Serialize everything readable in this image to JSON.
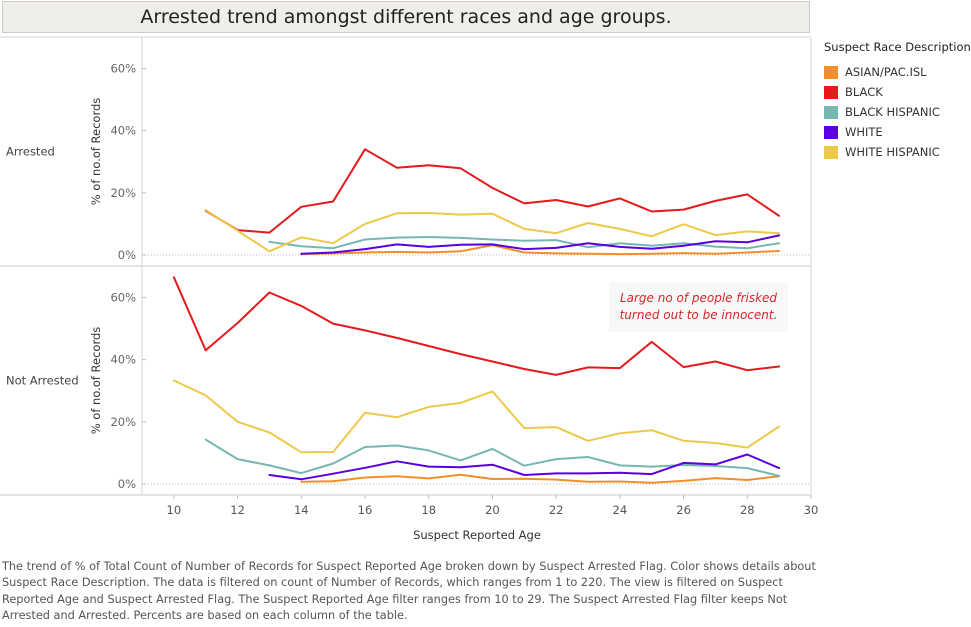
{
  "title": "Arrested trend amongst different races and age groups.",
  "legend": {
    "title": "Suspect Race Description",
    "items": [
      {
        "label": "ASIAN/PAC.ISL",
        "color": "#f28e2b"
      },
      {
        "label": "BLACK",
        "color": "#e41a1c"
      },
      {
        "label": "BLACK HISPANIC",
        "color": "#76b7b2"
      },
      {
        "label": "WHITE",
        "color": "#5a00e0"
      },
      {
        "label": "WHITE HISPANIC",
        "color": "#edc948"
      }
    ]
  },
  "caption": "The trend of % of Total Count of Number of Records for Suspect Reported Age broken down by Suspect Arrested Flag.  Color shows details about Suspect Race Description. The data is filtered on count of Number of Records, which ranges from 1 to 220. The view is filtered on Suspect Reported Age and Suspect Arrested Flag. The Suspect Reported Age filter ranges from 10 to 29. The Suspect Arrested Flag filter keeps Not Arrested and Arrested. Percents are based on each column of the table.",
  "chart_data": {
    "type": "line",
    "xlabel": "Suspect Reported Age",
    "ylabel": "% of no.of Records",
    "xlim": [
      9,
      30
    ],
    "x_ticks": [
      10,
      12,
      14,
      16,
      18,
      20,
      22,
      24,
      26,
      28,
      30
    ],
    "ylim": [
      -2,
      66
    ],
    "y_ticks": [
      0,
      20,
      40,
      60
    ],
    "y_tick_labels": [
      "0%",
      "20%",
      "40%",
      "60%"
    ],
    "annotation": {
      "text_lines": [
        "Large no of people frisked",
        "turned out to be innocent."
      ],
      "color": "#d62728",
      "panel": "Not Arrested"
    },
    "panels": [
      {
        "name": "Arrested",
        "series": [
          {
            "name": "ASIAN/PAC.ISL",
            "color": "#f28e2b",
            "x": [
              14,
              15,
              16,
              17,
              18,
              19,
              20,
              21,
              22,
              23,
              24,
              25,
              26,
              27,
              28,
              29
            ],
            "values": [
              0.3,
              0.5,
              0.8,
              1.0,
              0.8,
              1.2,
              3.2,
              0.8,
              0.5,
              0.4,
              0.3,
              0.4,
              0.6,
              0.4,
              0.8,
              1.3
            ]
          },
          {
            "name": "BLACK",
            "color": "#e41a1c",
            "x": [
              11,
              12,
              13,
              14,
              15,
              16,
              17,
              18,
              19,
              20,
              21,
              22,
              23,
              24,
              25,
              26,
              27,
              28,
              29
            ],
            "values": [
              14.3,
              8.0,
              7.2,
              15.5,
              17.2,
              34.0,
              28.1,
              28.9,
              27.9,
              21.6,
              16.6,
              17.7,
              15.6,
              18.2,
              14.0,
              14.6,
              17.4,
              19.5,
              12.6
            ]
          },
          {
            "name": "BLACK HISPANIC",
            "color": "#76b7b2",
            "x": [
              13,
              14,
              15,
              16,
              17,
              18,
              19,
              20,
              21,
              22,
              23,
              24,
              25,
              26,
              27,
              28,
              29
            ],
            "values": [
              4.2,
              2.8,
              2.2,
              5.0,
              5.6,
              5.8,
              5.5,
              5.0,
              4.6,
              4.8,
              2.5,
              3.8,
              3.0,
              3.8,
              2.7,
              2.2,
              3.8
            ]
          },
          {
            "name": "WHITE",
            "color": "#5a00e0",
            "x": [
              14,
              15,
              16,
              17,
              18,
              19,
              20,
              21,
              22,
              23,
              24,
              25,
              26,
              27,
              28,
              29
            ],
            "values": [
              0.4,
              0.8,
              1.9,
              3.4,
              2.6,
              3.3,
              3.4,
              1.9,
              2.3,
              3.8,
              2.6,
              2.0,
              3.0,
              4.4,
              4.1,
              6.3
            ]
          },
          {
            "name": "WHITE HISPANIC",
            "color": "#edc948",
            "x": [
              11,
              12,
              13,
              14,
              15,
              16,
              17,
              18,
              19,
              20,
              21,
              22,
              23,
              24,
              25,
              26,
              27,
              28,
              29
            ],
            "values": [
              14.5,
              7.8,
              1.2,
              5.7,
              3.8,
              10.0,
              13.4,
              13.5,
              13.0,
              13.3,
              8.4,
              7.0,
              10.3,
              8.4,
              6.0,
              9.9,
              6.4,
              7.6,
              7.0
            ]
          }
        ]
      },
      {
        "name": "Not Arrested",
        "series": [
          {
            "name": "ASIAN/PAC.ISL",
            "color": "#f28e2b",
            "x": [
              14,
              15,
              16,
              17,
              18,
              19,
              20,
              21,
              22,
              23,
              24,
              25,
              26,
              27,
              28,
              29
            ],
            "values": [
              0.7,
              0.9,
              2.1,
              2.5,
              1.8,
              3.0,
              1.6,
              1.7,
              1.4,
              0.7,
              0.8,
              0.4,
              1.0,
              1.9,
              1.3,
              2.5
            ]
          },
          {
            "name": "BLACK",
            "color": "#e41a1c",
            "x": [
              10,
              11,
              12,
              13,
              14,
              15,
              16,
              17,
              18,
              19,
              20,
              21,
              22,
              23,
              24,
              25,
              26,
              27,
              28,
              29
            ],
            "values": [
              66.5,
              43.0,
              51.8,
              61.6,
              57.3,
              51.6,
              49.4,
              47.0,
              44.4,
              41.8,
              39.4,
              37.0,
              35.1,
              37.5,
              37.3,
              45.7,
              37.6,
              39.4,
              36.6,
              37.8
            ]
          },
          {
            "name": "BLACK HISPANIC",
            "color": "#76b7b2",
            "x": [
              11,
              12,
              13,
              14,
              15,
              16,
              17,
              18,
              19,
              20,
              21,
              22,
              23,
              24,
              25,
              26,
              27,
              28,
              29
            ],
            "values": [
              14.3,
              8.0,
              6.0,
              3.5,
              6.6,
              11.9,
              12.4,
              10.8,
              7.6,
              11.3,
              5.9,
              8.0,
              8.7,
              6.0,
              5.6,
              6.1,
              5.8,
              5.1,
              2.6
            ]
          },
          {
            "name": "WHITE",
            "color": "#5a00e0",
            "x": [
              13,
              14,
              15,
              16,
              17,
              18,
              19,
              20,
              21,
              22,
              23,
              24,
              25,
              26,
              27,
              28,
              29
            ],
            "values": [
              2.9,
              1.5,
              3.3,
              5.2,
              7.3,
              5.6,
              5.4,
              6.2,
              2.9,
              3.4,
              3.4,
              3.6,
              3.2,
              6.8,
              6.3,
              9.5,
              5.1
            ]
          },
          {
            "name": "WHITE HISPANIC",
            "color": "#edc948",
            "x": [
              10,
              11,
              12,
              13,
              14,
              15,
              16,
              17,
              18,
              19,
              20,
              21,
              22,
              23,
              24,
              25,
              26,
              27,
              28,
              29
            ],
            "values": [
              33.3,
              28.5,
              20.0,
              16.6,
              10.2,
              10.3,
              22.9,
              21.5,
              24.8,
              26.1,
              29.8,
              18.0,
              18.3,
              13.9,
              16.3,
              17.3,
              13.9,
              13.2,
              11.7,
              18.5
            ]
          }
        ]
      }
    ]
  }
}
